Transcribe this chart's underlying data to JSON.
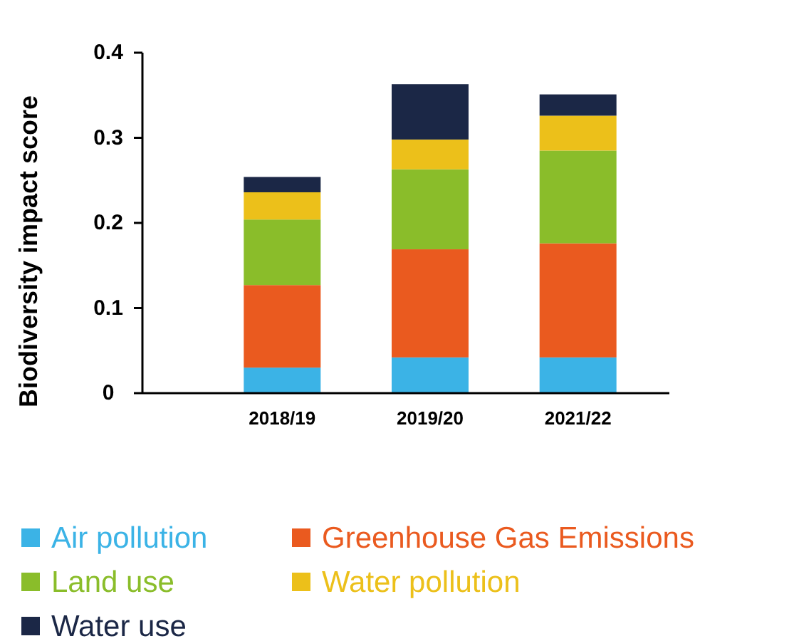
{
  "chart_data": {
    "type": "bar",
    "stacked": true,
    "ylabel": "Biodiversity impact score",
    "categories": [
      "2018/19",
      "2019/20",
      "2021/22"
    ],
    "ylim": [
      0,
      0.4
    ],
    "yticks": [
      0,
      0.1,
      0.2,
      0.3,
      0.4
    ],
    "grid": false,
    "legend": "bottom",
    "series": [
      {
        "name": "Air pollution",
        "color": "#3bb3e6",
        "values": [
          0.03,
          0.042,
          0.042
        ]
      },
      {
        "name": "Greenhouse Gas Emissions",
        "color": "#ea5a1f",
        "values": [
          0.097,
          0.127,
          0.134
        ]
      },
      {
        "name": "Land use",
        "color": "#8abd2a",
        "values": [
          0.077,
          0.094,
          0.109
        ]
      },
      {
        "name": "Water pollution",
        "color": "#ecc01a",
        "values": [
          0.032,
          0.035,
          0.041
        ]
      },
      {
        "name": "Water use",
        "color": "#1b2746",
        "values": [
          0.018,
          0.065,
          0.025
        ]
      }
    ]
  }
}
